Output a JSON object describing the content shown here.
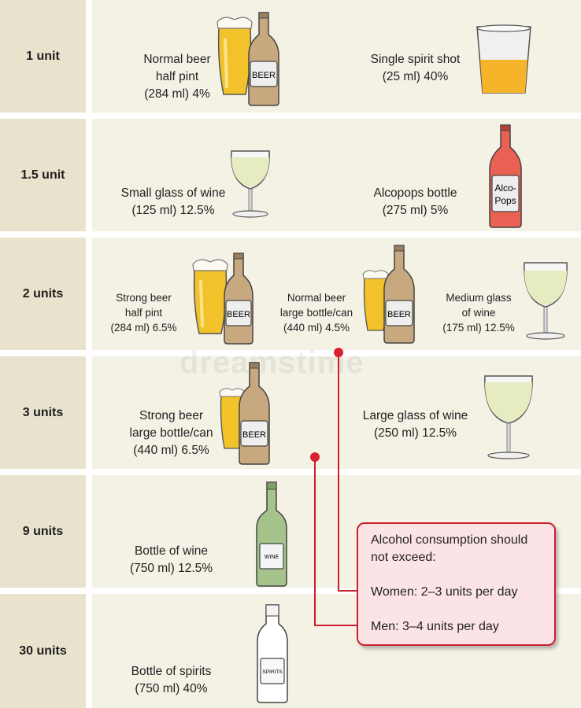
{
  "rows": [
    {
      "unit": "1 unit",
      "items": [
        {
          "lines": [
            "Normal beer",
            "half pint",
            "(284 ml) 4%"
          ]
        },
        {
          "lines": [
            "Single spirit shot",
            "(25 ml) 40%"
          ]
        }
      ]
    },
    {
      "unit": "1.5 unit",
      "items": [
        {
          "lines": [
            "Small glass of wine",
            "(125 ml) 12.5%"
          ]
        },
        {
          "lines": [
            "Alcopops bottle",
            "(275 ml) 5%"
          ]
        }
      ]
    },
    {
      "unit": "2 units",
      "items": [
        {
          "lines": [
            "Strong beer",
            "half pint",
            "(284 ml) 6.5%"
          ]
        },
        {
          "lines": [
            "Normal beer",
            "large bottle/can",
            "(440 ml) 4.5%"
          ]
        },
        {
          "lines": [
            "Medium glass",
            "of wine",
            "(175 ml) 12.5%"
          ]
        }
      ]
    },
    {
      "unit": "3 units",
      "items": [
        {
          "lines": [
            "Strong beer",
            "large bottle/can",
            "(440 ml) 6.5%"
          ]
        },
        {
          "lines": [
            "Large glass of wine",
            "(250 ml) 12.5%"
          ]
        }
      ]
    },
    {
      "unit": "9 units",
      "items": [
        {
          "lines": [
            "Bottle of wine",
            "(750 ml) 12.5%"
          ]
        }
      ]
    },
    {
      "unit": "30 units",
      "items": [
        {
          "lines": [
            "Bottle of spirits",
            "(750 ml) 40%"
          ]
        }
      ]
    }
  ],
  "labels": {
    "beer": "BEER",
    "alcopops_1": "Alco-",
    "alcopops_2": "Pops",
    "wine": "WINE",
    "spirits": "SPIRITS"
  },
  "callout": {
    "heading_1": "Alcohol consumption should",
    "heading_2": "not exceed:",
    "women": "Women: 2–3 units per day",
    "men": "Men: 3–4 units per day"
  },
  "watermark": "dreamstime",
  "colors": {
    "label_bg": "#e9e2cd",
    "panel_bg": "#f4f1e5",
    "callout_bg": "#fbe3e6",
    "callout_border": "#c8202f",
    "beer": "#f2c22a",
    "bottle_brown": "#c8a87e",
    "wine_white": "#e6ebc0",
    "bottle_green": "#a6c38c",
    "alcopop_red": "#e86152"
  },
  "icons": [
    "pint-glass",
    "beer-bottle",
    "shot-glass",
    "wine-glass",
    "alcopops-bottle",
    "wine-bottle",
    "spirits-bottle"
  ]
}
